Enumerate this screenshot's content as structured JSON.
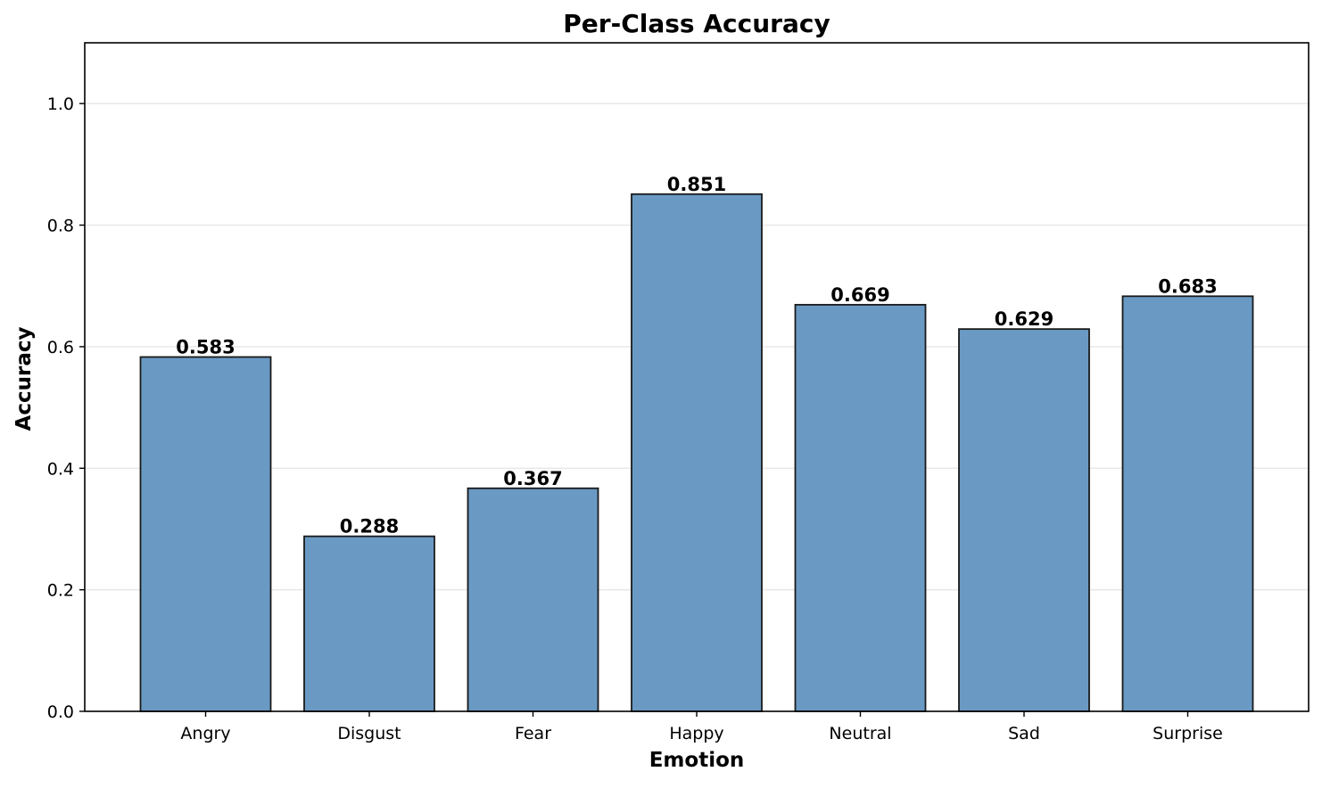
{
  "chart_data": {
    "type": "bar",
    "title": "Per-Class Accuracy",
    "xlabel": "Emotion",
    "ylabel": "Accuracy",
    "categories": [
      "Angry",
      "Disgust",
      "Fear",
      "Happy",
      "Neutral",
      "Sad",
      "Surprise"
    ],
    "values": [
      0.583,
      0.288,
      0.367,
      0.851,
      0.669,
      0.629,
      0.683
    ],
    "value_labels": [
      "0.583",
      "0.288",
      "0.367",
      "0.851",
      "0.669",
      "0.629",
      "0.683"
    ],
    "ylim": [
      0,
      1.1
    ],
    "yticks": [
      0.0,
      0.2,
      0.4,
      0.6,
      0.8,
      1.0
    ],
    "ytick_labels": [
      "0.0",
      "0.2",
      "0.4",
      "0.6",
      "0.8",
      "1.0"
    ],
    "grid": "y-axis only",
    "bar_color": "#6a9ac4",
    "bar_edge_color": "#1a1a1a"
  }
}
